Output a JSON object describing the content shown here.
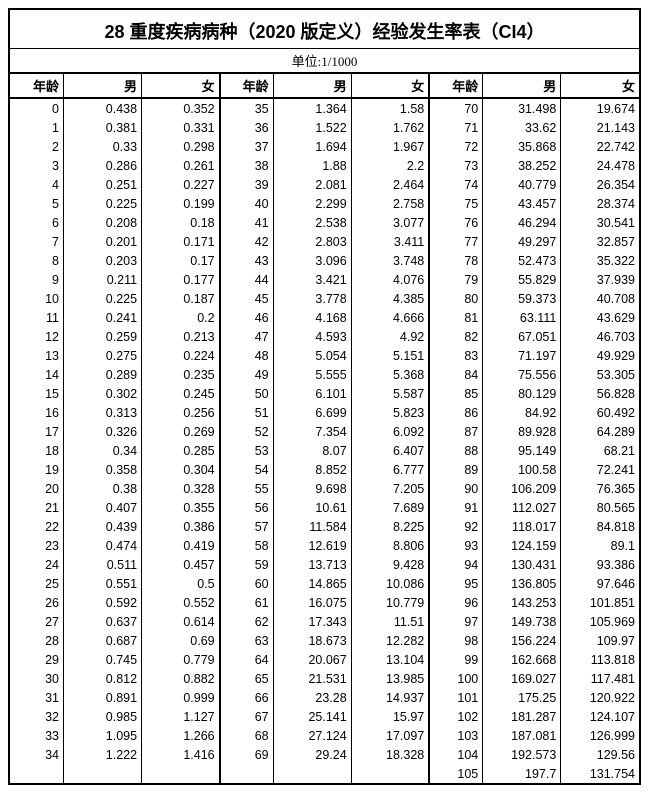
{
  "title": "28 重度疾病病种（2020 版定义）经验发生率表（CI4）",
  "unit_label": "单位:1/1000",
  "headers": [
    "年龄",
    "男",
    "女",
    "年龄",
    "男",
    "女",
    "年龄",
    "男",
    "女"
  ],
  "colors": {
    "border": "#000000",
    "background": "#ffffff",
    "text": "#000000"
  },
  "table_style": {
    "title_fontsize": 18,
    "header_fontsize": 13,
    "cell_fontsize": 12.5
  },
  "block1": {
    "ages": [
      0,
      1,
      2,
      3,
      4,
      5,
      6,
      7,
      8,
      9,
      10,
      11,
      12,
      13,
      14,
      15,
      16,
      17,
      18,
      19,
      20,
      21,
      22,
      23,
      24,
      25,
      26,
      27,
      28,
      29,
      30,
      31,
      32,
      33,
      34
    ],
    "male": [
      "0.438",
      "0.381",
      "0.33",
      "0.286",
      "0.251",
      "0.225",
      "0.208",
      "0.201",
      "0.203",
      "0.211",
      "0.225",
      "0.241",
      "0.259",
      "0.275",
      "0.289",
      "0.302",
      "0.313",
      "0.326",
      "0.34",
      "0.358",
      "0.38",
      "0.407",
      "0.439",
      "0.474",
      "0.511",
      "0.551",
      "0.592",
      "0.637",
      "0.687",
      "0.745",
      "0.812",
      "0.891",
      "0.985",
      "1.095",
      "1.222"
    ],
    "female": [
      "0.352",
      "0.331",
      "0.298",
      "0.261",
      "0.227",
      "0.199",
      "0.18",
      "0.171",
      "0.17",
      "0.177",
      "0.187",
      "0.2",
      "0.213",
      "0.224",
      "0.235",
      "0.245",
      "0.256",
      "0.269",
      "0.285",
      "0.304",
      "0.328",
      "0.355",
      "0.386",
      "0.419",
      "0.457",
      "0.5",
      "0.552",
      "0.614",
      "0.69",
      "0.779",
      "0.882",
      "0.999",
      "1.127",
      "1.266",
      "1.416"
    ]
  },
  "block2": {
    "ages": [
      35,
      36,
      37,
      38,
      39,
      40,
      41,
      42,
      43,
      44,
      45,
      46,
      47,
      48,
      49,
      50,
      51,
      52,
      53,
      54,
      55,
      56,
      57,
      58,
      59,
      60,
      61,
      62,
      63,
      64,
      65,
      66,
      67,
      68,
      69
    ],
    "male": [
      "1.364",
      "1.522",
      "1.694",
      "1.88",
      "2.081",
      "2.299",
      "2.538",
      "2.803",
      "3.096",
      "3.421",
      "3.778",
      "4.168",
      "4.593",
      "5.054",
      "5.555",
      "6.101",
      "6.699",
      "7.354",
      "8.07",
      "8.852",
      "9.698",
      "10.61",
      "11.584",
      "12.619",
      "13.713",
      "14.865",
      "16.075",
      "17.343",
      "18.673",
      "20.067",
      "21.531",
      "23.28",
      "25.141",
      "27.124",
      "29.24"
    ],
    "female": [
      "1.58",
      "1.762",
      "1.967",
      "2.2",
      "2.464",
      "2.758",
      "3.077",
      "3.411",
      "3.748",
      "4.076",
      "4.385",
      "4.666",
      "4.92",
      "5.151",
      "5.368",
      "5.587",
      "5.823",
      "6.092",
      "6.407",
      "6.777",
      "7.205",
      "7.689",
      "8.225",
      "8.806",
      "9.428",
      "10.086",
      "10.779",
      "11.51",
      "12.282",
      "13.104",
      "13.985",
      "14.937",
      "15.97",
      "17.097",
      "18.328"
    ]
  },
  "block3": {
    "ages": [
      70,
      71,
      72,
      73,
      74,
      75,
      76,
      77,
      78,
      79,
      80,
      81,
      82,
      83,
      84,
      85,
      86,
      87,
      88,
      89,
      90,
      91,
      92,
      93,
      94,
      95,
      96,
      97,
      98,
      99,
      100,
      101,
      102,
      103,
      104,
      105
    ],
    "male": [
      "31.498",
      "33.62",
      "35.868",
      "38.252",
      "40.779",
      "43.457",
      "46.294",
      "49.297",
      "52.473",
      "55.829",
      "59.373",
      "63.111",
      "67.051",
      "71.197",
      "75.556",
      "80.129",
      "84.92",
      "89.928",
      "95.149",
      "100.58",
      "106.209",
      "112.027",
      "118.017",
      "124.159",
      "130.431",
      "136.805",
      "143.253",
      "149.738",
      "156.224",
      "162.668",
      "169.027",
      "175.25",
      "181.287",
      "187.081",
      "192.573",
      "197.7"
    ],
    "female": [
      "19.674",
      "21.143",
      "22.742",
      "24.478",
      "26.354",
      "28.374",
      "30.541",
      "32.857",
      "35.322",
      "37.939",
      "40.708",
      "43.629",
      "46.703",
      "49.929",
      "53.305",
      "56.828",
      "60.492",
      "64.289",
      "68.21",
      "72.241",
      "76.365",
      "80.565",
      "84.818",
      "89.1",
      "93.386",
      "97.646",
      "101.851",
      "105.969",
      "109.97",
      "113.818",
      "117.481",
      "120.922",
      "124.107",
      "126.999",
      "129.56",
      "131.754"
    ]
  }
}
